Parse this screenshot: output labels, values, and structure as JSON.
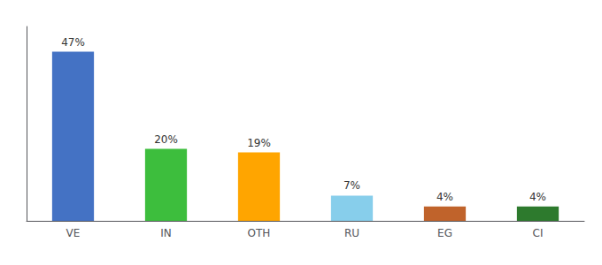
{
  "chart_data": {
    "type": "bar",
    "categories": [
      "VE",
      "IN",
      "OTH",
      "RU",
      "EG",
      "CI"
    ],
    "values": [
      47,
      20,
      19,
      7,
      4,
      4
    ],
    "value_labels": [
      "47%",
      "20%",
      "19%",
      "7%",
      "4%",
      "4%"
    ],
    "colors": [
      "#4472C4",
      "#3DBE3D",
      "#FFA500",
      "#87CEEB",
      "#C0632B",
      "#2D7A2D"
    ],
    "ylim": [
      0,
      54
    ],
    "grid": false,
    "data_labels": true,
    "tick_labels": "x"
  }
}
